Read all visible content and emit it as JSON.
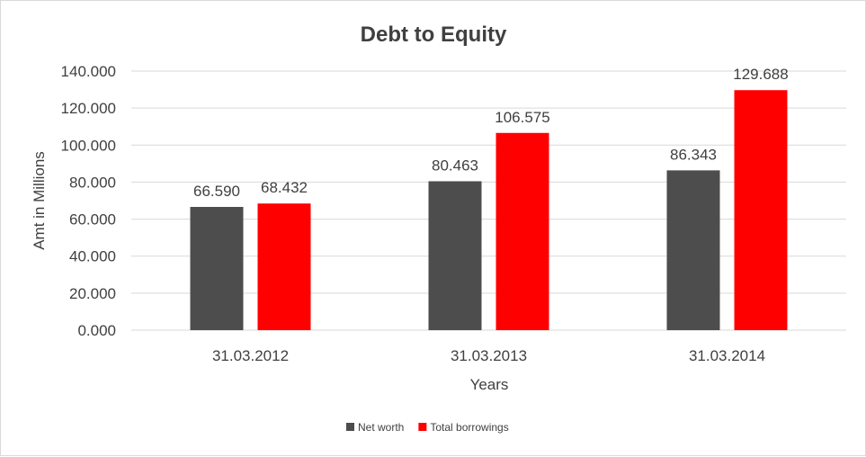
{
  "chart_data": {
    "type": "bar",
    "title": "Debt to Equity",
    "xlabel": "Years",
    "ylabel": "Amt in Millions",
    "categories": [
      "31.03.2012",
      "31.03.2013",
      "31.03.2014"
    ],
    "series": [
      {
        "name": "Net worth",
        "values": [
          66.59,
          80.463,
          86.343
        ],
        "labels": [
          "66.590",
          "80.463",
          "86.343"
        ],
        "color": "#4d4d4d"
      },
      {
        "name": "Total borrowings",
        "values": [
          68.432,
          106.575,
          129.688
        ],
        "labels": [
          "68.432",
          "106.575",
          "129.688"
        ],
        "color": "#ff0000"
      }
    ],
    "ylim": [
      0,
      140
    ],
    "yticks": [
      0,
      20,
      40,
      60,
      80,
      100,
      120,
      140
    ],
    "ytick_labels": [
      "0.000",
      "20.000",
      "40.000",
      "60.000",
      "80.000",
      "100.000",
      "120.000",
      "140.000"
    ],
    "grid": true,
    "legend_position": "bottom"
  }
}
